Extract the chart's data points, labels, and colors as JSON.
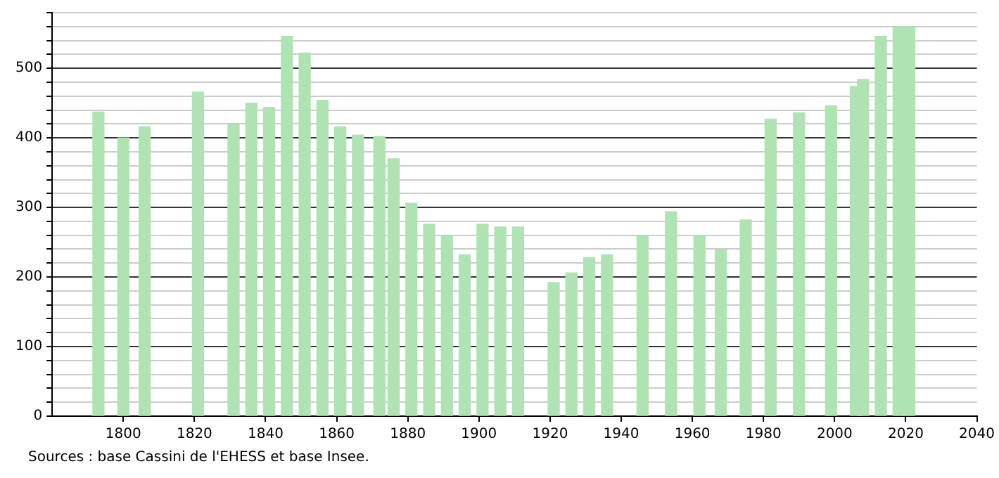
{
  "chart_data": {
    "type": "bar",
    "x": [
      1793,
      1800,
      1806,
      1821,
      1831,
      1836,
      1841,
      1846,
      1851,
      1856,
      1861,
      1866,
      1872,
      1876,
      1881,
      1886,
      1891,
      1896,
      1901,
      1906,
      1911,
      1921,
      1926,
      1931,
      1936,
      1946,
      1954,
      1962,
      1968,
      1975,
      1982,
      1990,
      1999,
      2006,
      2008,
      2013,
      2018,
      2021
    ],
    "values": [
      437,
      400,
      416,
      466,
      419,
      450,
      444,
      546,
      522,
      454,
      416,
      404,
      402,
      370,
      306,
      276,
      259,
      232,
      276,
      272,
      272,
      192,
      206,
      228,
      232,
      259,
      294,
      259,
      239,
      282,
      427,
      436,
      446,
      474,
      484,
      546,
      560,
      560
    ],
    "color": "#b0e3b3",
    "xlim": [
      1780,
      2040
    ],
    "xticks": [
      1800,
      1820,
      1840,
      1860,
      1880,
      1900,
      1920,
      1940,
      1960,
      1980,
      2000,
      2020,
      2040
    ],
    "ylim": [
      0,
      580
    ],
    "yticks": [
      0,
      {
        "value": 20,
        "label": null
      },
      {
        "value": 40,
        "label": null
      },
      {
        "value": 60,
        "label": null
      },
      {
        "value": 80,
        "label": null
      },
      100,
      {
        "value": 120,
        "label": null
      },
      {
        "value": 140,
        "label": null
      },
      {
        "value": 160,
        "label": null
      },
      {
        "value": 180,
        "label": null
      },
      200,
      {
        "value": 220,
        "label": null
      },
      {
        "value": 240,
        "label": null
      },
      {
        "value": 260,
        "label": null
      },
      {
        "value": 280,
        "label": null
      },
      300,
      {
        "value": 320,
        "label": null
      },
      {
        "value": 340,
        "label": null
      },
      {
        "value": 360,
        "label": null
      },
      {
        "value": 380,
        "label": null
      },
      400,
      {
        "value": 420,
        "label": null
      },
      {
        "value": 440,
        "label": null
      },
      {
        "value": 460,
        "label": null
      },
      {
        "value": 480,
        "label": null
      },
      500,
      {
        "value": 520,
        "label": null
      },
      {
        "value": 540,
        "label": null
      },
      {
        "value": 560,
        "label": null
      },
      {
        "value": 580,
        "label": null
      }
    ],
    "grid": "y",
    "annotations": [
      "Sources : base Cassini de l'EHESS et base Insee."
    ]
  }
}
